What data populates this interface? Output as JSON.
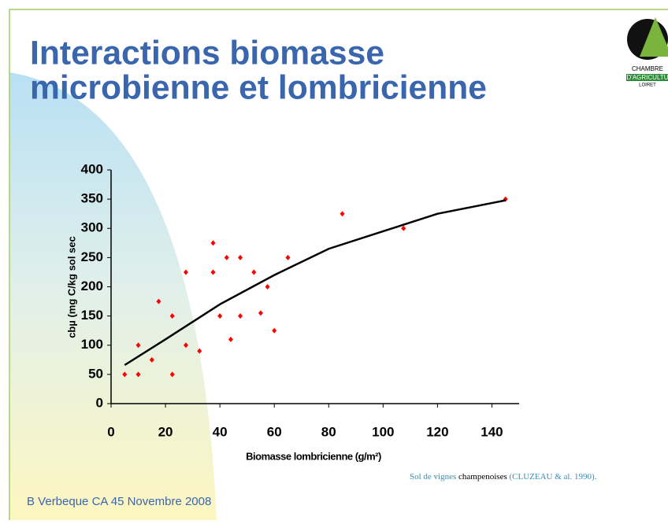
{
  "slide": {
    "title_lines": [
      "Interactions biomasse",
      "microbienne et lombricienne"
    ],
    "logo_lines": [
      "CHAMBRE",
      "D'AGRICULTU",
      "LOIRET"
    ],
    "source_parts": [
      "Sol de vignes",
      "champenoises",
      "(CLUZEAU & al. 1990)."
    ],
    "footer": "B Verbeque CA 45 Novembre 2008"
  },
  "chart_data": {
    "type": "scatter",
    "x_label": "Biomasse lombricienne (g/m²)",
    "y_label": "cbµ (mg C/kg sol sec",
    "xlim": [
      0,
      150
    ],
    "xticks": [
      0,
      20,
      40,
      60,
      80,
      100,
      120,
      140
    ],
    "ylim": [
      0,
      400
    ],
    "yticks": [
      0,
      50,
      100,
      150,
      200,
      250,
      300,
      350,
      400
    ],
    "series": [
      {
        "color": "#ff0000",
        "x": [
          5,
          10,
          10,
          15,
          17.5,
          22.5,
          22.5,
          27.5,
          27.5,
          32.5,
          37.5,
          37.5,
          40,
          42.5,
          44,
          47.5,
          47.5,
          52.5,
          55,
          57.5,
          60,
          65,
          85,
          107.5,
          145
        ],
        "values": [
          50,
          50,
          100,
          75,
          175,
          150,
          50,
          225,
          100,
          90,
          275,
          225,
          150,
          250,
          110,
          250,
          150,
          225,
          155,
          200,
          125,
          250,
          325,
          300,
          350
        ]
      },
      {
        "color": "#000000",
        "line": true,
        "x": [
          5,
          20,
          40,
          60,
          80,
          100,
          120,
          145
        ],
        "values": [
          66,
          110,
          170,
          220,
          265,
          295,
          325,
          348
        ]
      }
    ]
  }
}
